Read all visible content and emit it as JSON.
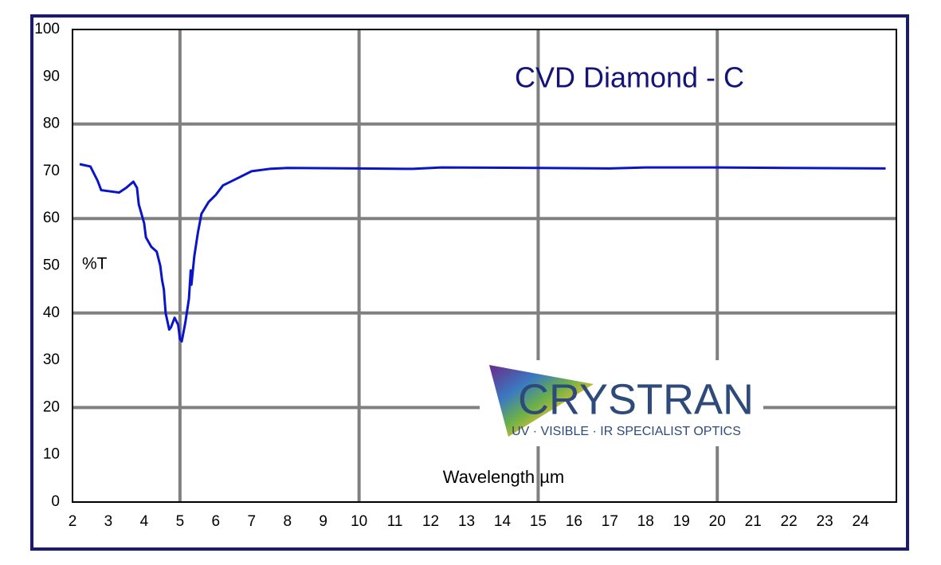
{
  "chart_data": {
    "type": "line",
    "title": "CVD Diamond - C",
    "x_label": "Wavelength µm",
    "y_label": "%T",
    "x": [
      2.2,
      2.5,
      2.7,
      2.8,
      3.0,
      3.3,
      3.5,
      3.7,
      3.8,
      3.85,
      4.0,
      4.05,
      4.2,
      4.35,
      4.45,
      4.5,
      4.55,
      4.6,
      4.7,
      4.75,
      4.85,
      4.95,
      5.0,
      5.05,
      5.15,
      5.25,
      5.3,
      5.32,
      5.4,
      5.5,
      5.6,
      5.8,
      6.0,
      6.2,
      6.6,
      7.0,
      7.5,
      8.0,
      10.0,
      11.5,
      12.3,
      15.0,
      17.0,
      18.0,
      20.0,
      22.0,
      24.7
    ],
    "values": [
      71.5,
      71,
      68,
      66,
      65.8,
      65.5,
      66.5,
      67.8,
      66.5,
      63,
      59,
      56,
      54,
      53,
      50,
      47,
      45,
      40,
      36.5,
      37,
      39,
      37.5,
      34.5,
      34,
      38,
      43,
      49,
      46,
      52,
      57,
      61,
      63.5,
      65,
      67,
      68.5,
      70,
      70.5,
      70.7,
      70.6,
      70.5,
      70.8,
      70.7,
      70.6,
      70.8,
      70.8,
      70.7,
      70.6
    ],
    "color": "#0a14c8",
    "xlim": [
      2,
      25
    ],
    "xticks": [
      2,
      3,
      4,
      5,
      6,
      7,
      8,
      9,
      10,
      11,
      12,
      13,
      14,
      15,
      16,
      17,
      18,
      19,
      20,
      21,
      22,
      23,
      24
    ],
    "ylim": [
      0,
      100
    ],
    "yticks": [
      0,
      10,
      20,
      30,
      40,
      50,
      60,
      70,
      80,
      90,
      100
    ],
    "xgrid": [
      5,
      10,
      15,
      20
    ],
    "ygrid": [
      20,
      40,
      60,
      80
    ]
  },
  "logo": {
    "name": "CRYSTRAN",
    "tagline": "UV · VISIBLE · IR SPECIALIST OPTICS"
  }
}
